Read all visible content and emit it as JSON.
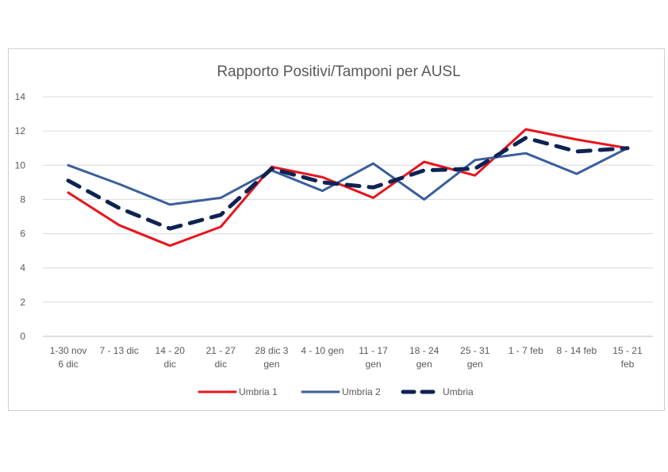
{
  "chart_data": {
    "type": "line",
    "title": "Rapporto Positivi/Tamponi per AUSL",
    "xlabel": "",
    "ylabel": "",
    "ylim": [
      0,
      14
    ],
    "yticks": [
      0,
      2,
      4,
      6,
      8,
      10,
      12,
      14
    ],
    "grid": true,
    "legend": "bottom",
    "categories": [
      [
        "1-30 nov",
        "6 dic"
      ],
      [
        "7 - 13 dic"
      ],
      [
        "14 - 20",
        "dic"
      ],
      [
        "21 - 27",
        "dic"
      ],
      [
        "28 dic 3",
        "gen"
      ],
      [
        "4 - 10 gen"
      ],
      [
        "11 - 17",
        "gen"
      ],
      [
        "18 - 24",
        "gen"
      ],
      [
        "25 - 31",
        "gen"
      ],
      [
        "1 - 7 feb"
      ],
      [
        "8 - 14 feb"
      ],
      [
        "15 - 21",
        "feb"
      ]
    ],
    "series": [
      {
        "name": "Umbria 1",
        "color": "#e8141c",
        "style": "solid",
        "values": [
          8.4,
          6.5,
          5.3,
          6.4,
          9.9,
          9.3,
          8.1,
          10.2,
          9.4,
          12.1,
          11.5,
          11.0
        ]
      },
      {
        "name": "Umbria 2",
        "color": "#3b5e9b",
        "style": "solid",
        "values": [
          10.0,
          8.9,
          7.7,
          8.1,
          9.7,
          8.5,
          10.1,
          8.0,
          10.3,
          10.7,
          9.5,
          11.0
        ]
      },
      {
        "name": "Umbria",
        "color": "#0d2352",
        "style": "dashed",
        "values": [
          9.1,
          7.5,
          6.3,
          7.1,
          9.8,
          9.0,
          8.7,
          9.7,
          9.8,
          11.6,
          10.8,
          11.0
        ]
      }
    ]
  }
}
